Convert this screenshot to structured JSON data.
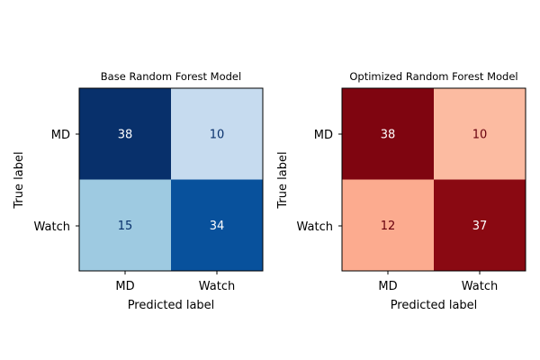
{
  "chart_data": [
    {
      "type": "heatmap",
      "title": "Base Random Forest Model",
      "xlabel": "Predicted label",
      "ylabel": "True label",
      "x_categories": [
        "MD",
        "Watch"
      ],
      "y_categories": [
        "MD",
        "Watch"
      ],
      "values": [
        [
          38,
          10
        ],
        [
          15,
          34
        ]
      ],
      "colormap": "Blues",
      "cell_colors": [
        [
          "#08306b",
          "#c6dbef"
        ],
        [
          "#9ecae1",
          "#08519c"
        ]
      ],
      "text_colors": [
        [
          "#ffffff",
          "#08306b"
        ],
        [
          "#08306b",
          "#ffffff"
        ]
      ]
    },
    {
      "type": "heatmap",
      "title": "Optimized Random Forest Model",
      "xlabel": "Predicted label",
      "ylabel": "True label",
      "x_categories": [
        "MD",
        "Watch"
      ],
      "y_categories": [
        "MD",
        "Watch"
      ],
      "values": [
        [
          38,
          10
        ],
        [
          12,
          37
        ]
      ],
      "colormap": "Reds",
      "cell_colors": [
        [
          "#7f0510",
          "#fcbba1"
        ],
        [
          "#fcab8f",
          "#8a0912"
        ]
      ],
      "text_colors": [
        [
          "#ffffff",
          "#67000d"
        ],
        [
          "#67000d",
          "#ffffff"
        ]
      ]
    }
  ]
}
